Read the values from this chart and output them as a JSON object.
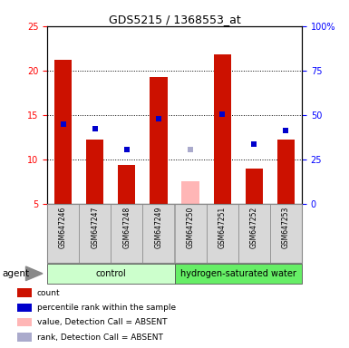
{
  "title": "GDS5215 / 1368553_at",
  "samples": [
    "GSM647246",
    "GSM647247",
    "GSM647248",
    "GSM647249",
    "GSM647250",
    "GSM647251",
    "GSM647252",
    "GSM647253"
  ],
  "bar_values": [
    21.2,
    12.2,
    9.4,
    19.3,
    null,
    21.8,
    8.9,
    12.2
  ],
  "bar_absent_values": [
    null,
    null,
    null,
    null,
    7.5,
    null,
    null,
    null
  ],
  "rank_values": [
    14.0,
    13.4,
    11.1,
    14.6,
    null,
    15.1,
    11.7,
    13.2
  ],
  "rank_absent_values": [
    null,
    null,
    null,
    null,
    11.1,
    null,
    null,
    null
  ],
  "bar_color": "#CC1100",
  "bar_absent_color": "#FFB6B6",
  "rank_color": "#0000CC",
  "rank_absent_color": "#AAAACC",
  "ylim_left": [
    5,
    25
  ],
  "ylim_right": [
    0,
    100
  ],
  "yticks_left": [
    5,
    10,
    15,
    20,
    25
  ],
  "yticks_right": [
    0,
    25,
    50,
    75,
    100
  ],
  "groups": [
    {
      "label": "control",
      "indices": [
        0,
        1,
        2,
        3
      ],
      "color": "#CCFFCC"
    },
    {
      "label": "hydrogen-saturated water",
      "indices": [
        4,
        5,
        6,
        7
      ],
      "color": "#66EE66"
    }
  ],
  "agent_label": "agent",
  "legend_items": [
    {
      "label": "count",
      "color": "#CC1100"
    },
    {
      "label": "percentile rank within the sample",
      "color": "#0000CC"
    },
    {
      "label": "value, Detection Call = ABSENT",
      "color": "#FFB6B6"
    },
    {
      "label": "rank, Detection Call = ABSENT",
      "color": "#AAAACC"
    }
  ],
  "grid_color": "black",
  "background_color": "#D8D8D8",
  "tick_label_fontsize": 7,
  "sample_fontsize": 5.5,
  "group_fontsize": 7,
  "legend_fontsize": 6.5,
  "title_fontsize": 9
}
